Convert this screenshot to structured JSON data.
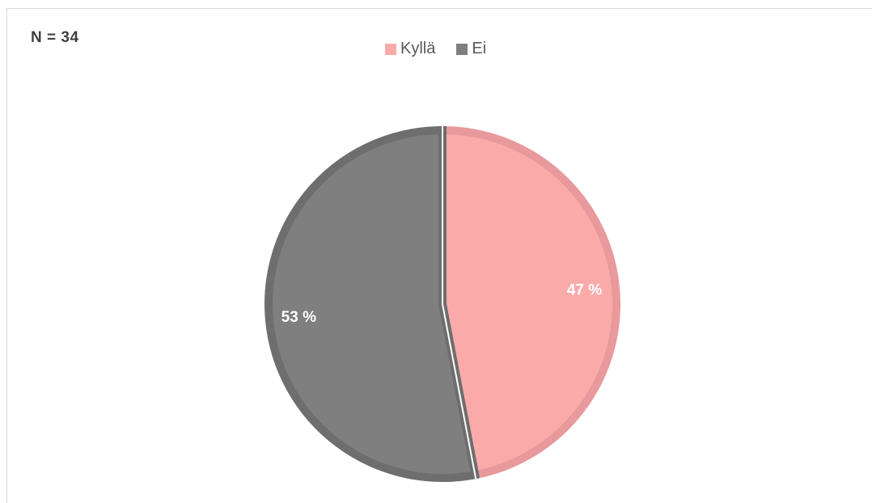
{
  "sample_note": "N = 34",
  "chart_data": {
    "type": "pie",
    "categories": [
      "Kyllä",
      "Ei"
    ],
    "values": [
      47,
      53
    ],
    "data_labels": [
      "47 %",
      "53 %"
    ],
    "colors": [
      "#fbaaaa",
      "#7f7f7f"
    ],
    "border_colors": [
      "#e8999b",
      "#6e6e6e"
    ],
    "legend_position": "top",
    "start_angle": "12 o'clock, clockwise"
  }
}
